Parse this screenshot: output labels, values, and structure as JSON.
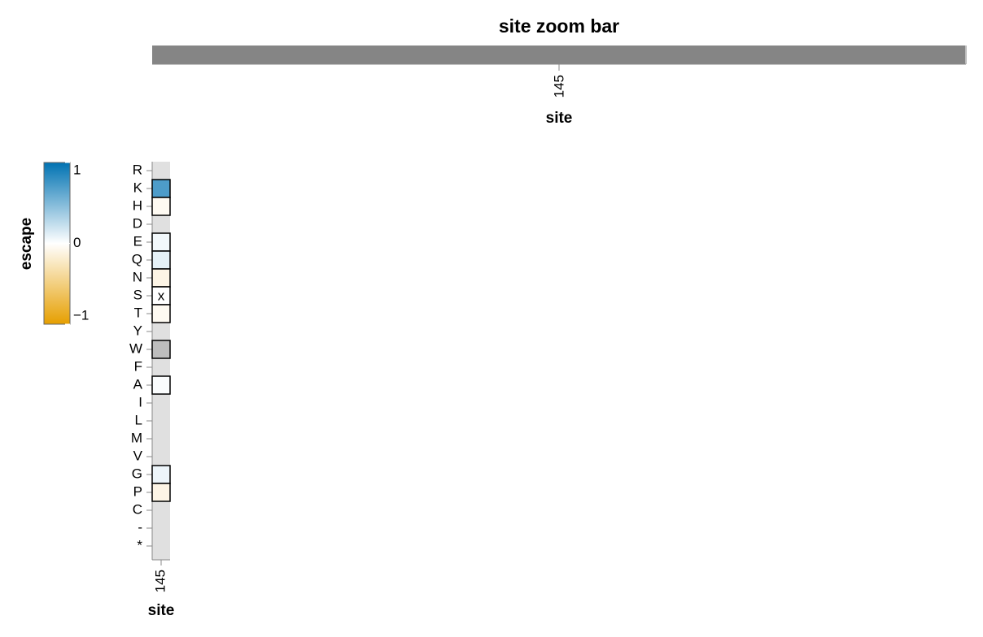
{
  "chart_data": [
    {
      "type": "zoombar",
      "title": "site zoom bar",
      "xlabel": "site",
      "xlim": [
        144.5,
        145.5
      ],
      "xticks": [
        145
      ],
      "color": "#858585"
    },
    {
      "type": "heatmap",
      "xlabel": "site",
      "xticks": [
        145
      ],
      "categories": [
        "R",
        "K",
        "H",
        "D",
        "E",
        "Q",
        "N",
        "S",
        "T",
        "Y",
        "W",
        "F",
        "A",
        "I",
        "L",
        "M",
        "V",
        "G",
        "P",
        "C",
        "-",
        "*"
      ],
      "values": [
        null,
        0.7,
        -0.05,
        null,
        0.05,
        0.1,
        -0.1,
        0,
        -0.05,
        null,
        null,
        null,
        0.02,
        null,
        null,
        null,
        null,
        0.07,
        -0.1,
        null,
        null,
        null
      ],
      "wildtype": {
        "row": "S",
        "label": "x"
      },
      "masked": [
        "W"
      ],
      "mask_color": "#bdbdbd",
      "legend": {
        "title": "escape",
        "lim": [
          -1,
          1
        ],
        "ticks": [
          1,
          0,
          {
            "value": -1,
            "label": "−1"
          }
        ],
        "colors": [
          "#e69f00",
          "#ffffff",
          "#0072b2"
        ]
      }
    }
  ]
}
